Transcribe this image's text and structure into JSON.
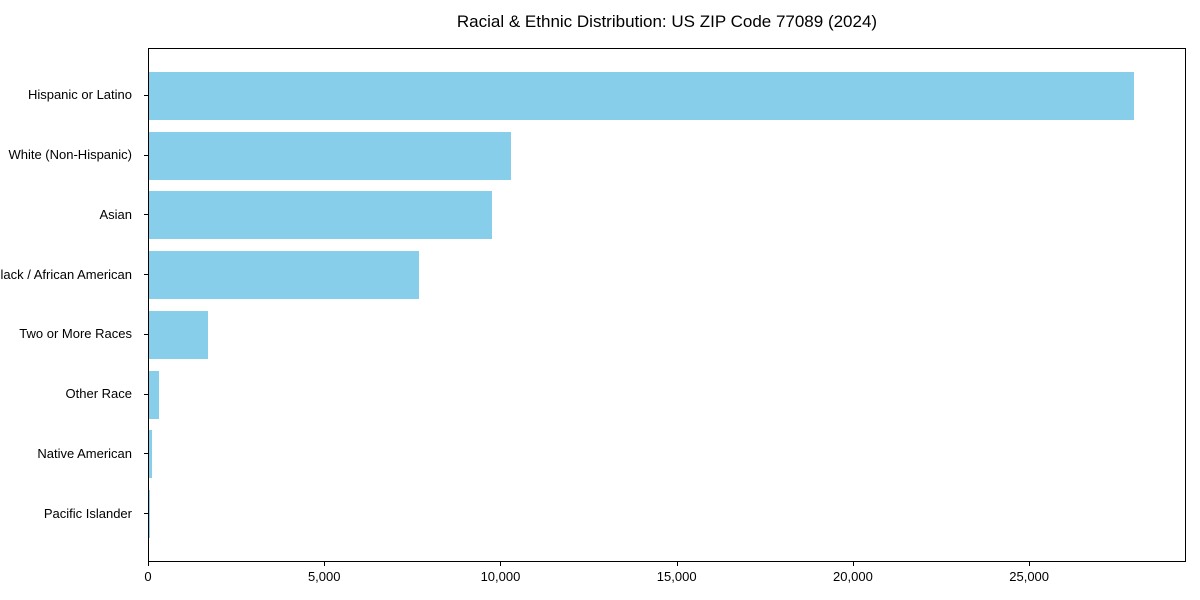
{
  "title": "Racial & Ethnic Distribution: US ZIP Code 77089 (2024)",
  "colors": {
    "bar": "#87CEEB",
    "axis": "#000000",
    "text": "#000000",
    "background": "#ffffff"
  },
  "chart_data": {
    "type": "bar",
    "orientation": "horizontal",
    "title": "Racial & Ethnic Distribution: US ZIP Code 77089 (2024)",
    "xlabel": "",
    "ylabel": "",
    "categories": [
      "Hispanic or Latino",
      "White (Non-Hispanic)",
      "Asian",
      "Black / African American",
      "Two or More Races",
      "Other Race",
      "Native American",
      "Pacific Islander"
    ],
    "values": [
      28000,
      10300,
      9760,
      7670,
      1670,
      290,
      80,
      15
    ],
    "xlim": [
      0,
      29450
    ],
    "x_ticks": [
      0,
      5000,
      10000,
      15000,
      20000,
      25000
    ],
    "x_tick_labels": [
      "0",
      "5,000",
      "10,000",
      "15,000",
      "20,000",
      "25,000"
    ],
    "grid": false,
    "legend": null,
    "bar_color": "#87CEEB"
  }
}
